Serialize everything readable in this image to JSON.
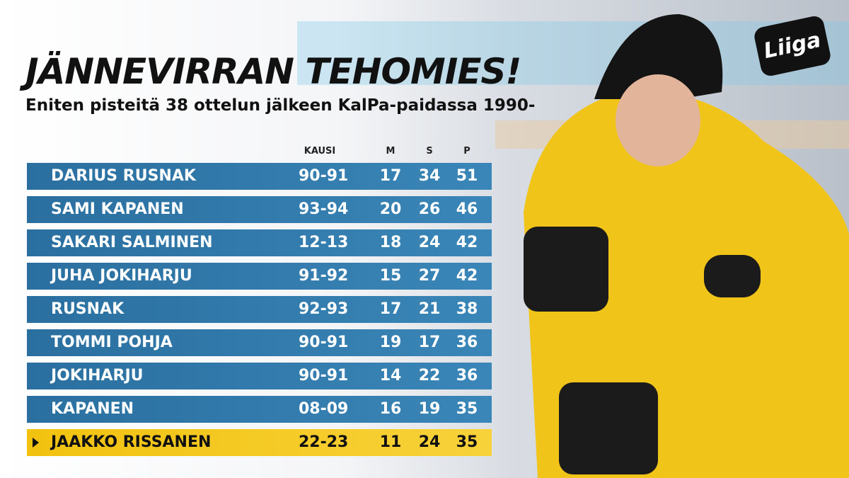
{
  "header": {
    "title": "JÄNNEVIRRAN TEHOMIES!",
    "subtitle": "Eniten pisteitä 38 ottelun jälkeen KalPa-paidassa 1990-",
    "logo": "Liiga"
  },
  "table": {
    "columns": [
      "KAUSI",
      "M",
      "S",
      "P"
    ],
    "rows": [
      [
        "DARIUS RUSNAK",
        "90-91",
        17,
        34,
        51
      ],
      [
        "SAMI KAPANEN",
        "93-94",
        20,
        26,
        46
      ],
      [
        "SAKARI SALMINEN",
        "12-13",
        18,
        24,
        42
      ],
      [
        "JUHA JOKIHARJU",
        "91-92",
        15,
        27,
        42
      ],
      [
        "RUSNAK",
        "92-93",
        17,
        21,
        38
      ],
      [
        "TOMMI POHJA",
        "90-91",
        19,
        17,
        36
      ],
      [
        "JOKIHARJU",
        "90-91",
        14,
        22,
        36
      ],
      [
        "KAPANEN",
        "08-09",
        16,
        19,
        35
      ],
      [
        "JAAKKO RISSANEN",
        "22-23",
        11,
        24,
        35
      ]
    ]
  }
}
